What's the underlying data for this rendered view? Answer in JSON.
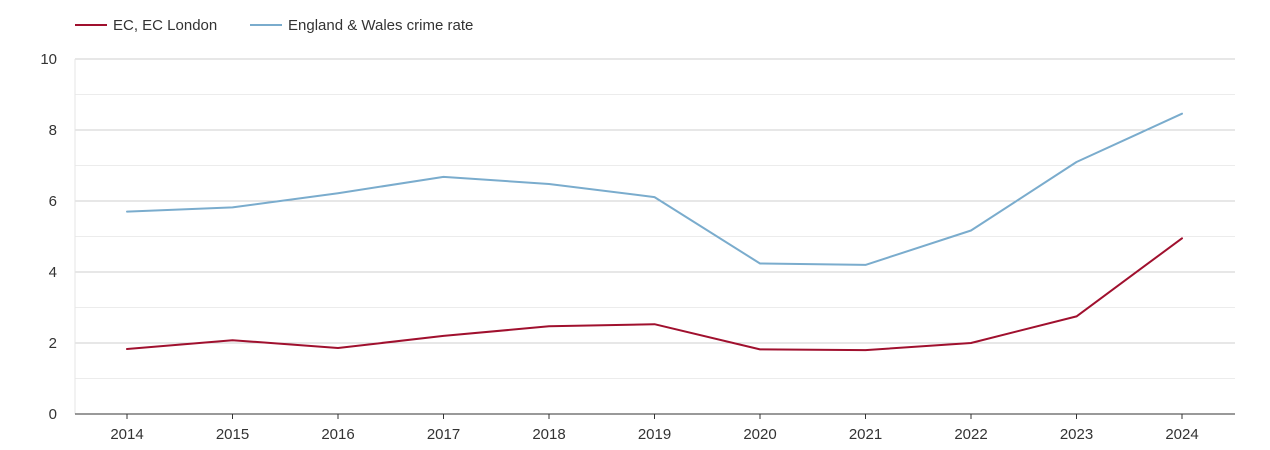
{
  "chart_data": {
    "type": "line",
    "title": "",
    "xlabel": "",
    "ylabel": "",
    "ylim": [
      0,
      10
    ],
    "yticks": [
      0,
      2,
      4,
      6,
      8,
      10
    ],
    "grid": true,
    "legend_position": "top-left",
    "categories": [
      "2014",
      "2015",
      "2016",
      "2017",
      "2018",
      "2019",
      "2020",
      "2021",
      "2022",
      "2023",
      "2024"
    ],
    "series": [
      {
        "name": "EC, EC London",
        "color": "#a0102e",
        "values": [
          1.83,
          2.08,
          1.86,
          2.2,
          2.47,
          2.53,
          1.82,
          1.8,
          2.0,
          2.75,
          4.95
        ]
      },
      {
        "name": "England & Wales crime rate",
        "color": "#7aaccd",
        "values": [
          5.7,
          5.82,
          6.22,
          6.68,
          6.48,
          6.11,
          4.24,
          4.2,
          5.17,
          7.1,
          8.46
        ]
      }
    ]
  }
}
